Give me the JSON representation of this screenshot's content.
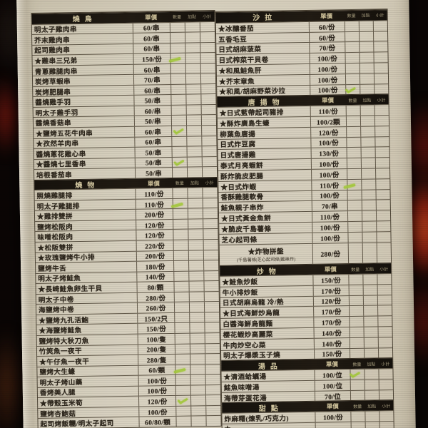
{
  "photo": {
    "background_color": "#0b0605",
    "paper_color": "#d3cbb8",
    "section_band_color": "#16120d",
    "text_color": "#2e271d",
    "highlighter_color": "#a5ca3c",
    "bokeh_red": "#8f2212"
  },
  "order_columns": {
    "price": "單價",
    "qty": "數量",
    "extra": "加點",
    "subtotal": "小計"
  },
  "icons": {
    "star": "★",
    "highlight_mark": "green-highlighter-stroke"
  },
  "menu": {
    "left": {
      "sections": [
        {
          "title": "燒鳥",
          "items": [
            {
              "name": "明太子雞肉串",
              "price": "60/串"
            },
            {
              "name": "芥末雞肉串",
              "price": "60/串"
            },
            {
              "name": "起司雞肉串",
              "price": "60/串"
            },
            {
              "name": "★雞串三兄弟",
              "price": "150/份",
              "mark": "line"
            },
            {
              "name": "青蔥雞腿肉串",
              "price": "60/串"
            },
            {
              "name": "炭烤草蝦串",
              "price": "70/串"
            },
            {
              "name": "炭烤肥腸串",
              "price": "60/串"
            },
            {
              "name": "醬燒雞手羽",
              "price": "50/串"
            },
            {
              "name": "明太子雞手羽",
              "price": "60/串"
            },
            {
              "name": "醬燒香菇串",
              "price": "50/串"
            },
            {
              "name": "★鹽烤五花牛肉串",
              "price": "60/串",
              "mark": "check"
            },
            {
              "name": "★孜然羊肉串",
              "price": "60/串"
            },
            {
              "name": "醬燒蔥花雞心串",
              "price": "50/串"
            },
            {
              "name": "★醬燒七里香串",
              "price": "50/串",
              "mark": "check"
            },
            {
              "name": "培根番茄串",
              "price": "50/串"
            }
          ]
        },
        {
          "title": "燒物",
          "items": [
            {
              "name": "照燒雞腿排",
              "price": "110/份"
            },
            {
              "name": "明太子雞腿排",
              "price": "110/份",
              "mark": "line"
            },
            {
              "name": "★雞排雙拼",
              "price": "200/份"
            },
            {
              "name": "鹽烤松阪肉",
              "price": "120/份"
            },
            {
              "name": "味噌松阪肉",
              "price": "120/份"
            },
            {
              "name": "★松阪雙拼",
              "price": "220/份"
            },
            {
              "name": "★玫瑰鹽烤牛小排",
              "price": "200/份"
            },
            {
              "name": "鹽烤牛舌",
              "price": "180/份"
            },
            {
              "name": "明太子烤鮭魚",
              "price": "140/份"
            },
            {
              "name": "★長崎鮭魚卵生干貝",
              "price": "80/顆"
            },
            {
              "name": "明太子中卷",
              "price": "280/份"
            },
            {
              "name": "海鹽烤中卷",
              "price": "260/份"
            },
            {
              "name": "★鹽烤九孔活鮑",
              "price": "150/2只"
            },
            {
              "name": "★海鹽烤鮭魚",
              "price": "150/份"
            },
            {
              "name": "鹽烤特大秋刀魚",
              "price": "100/隻"
            },
            {
              "name": "竹筴魚一夜干",
              "price": "200/隻"
            },
            {
              "name": "★午仔魚一夜干",
              "price": "280/隻"
            },
            {
              "name": "鹽烤大生蠔",
              "price": "60/顆",
              "mark": "line"
            },
            {
              "name": "明太子烤山藥",
              "price": "100/份"
            },
            {
              "name": "香烤美人腿",
              "price": "100/份"
            },
            {
              "name": "★帶殼玉米筍",
              "price": "120/份",
              "mark": "check"
            },
            {
              "name": "鹽烤杏鮑菇",
              "price": "100/份"
            },
            {
              "name": "起司烤飯糰/明太子起司",
              "price": "60/80/顆"
            }
          ]
        }
      ]
    },
    "right": {
      "sections": [
        {
          "title": "沙拉",
          "items": [
            {
              "name": "★冰釀番茄",
              "price": "60/份"
            },
            {
              "name": "五香毛豆",
              "price": "60/份"
            },
            {
              "name": "日式胡麻菠菜",
              "price": "70/份"
            },
            {
              "name": "日式榨菜干貝卷",
              "price": "100/份"
            },
            {
              "name": "★和風鮭魚肝",
              "price": "100/份"
            },
            {
              "name": "★芥末章魚",
              "price": "100/份"
            },
            {
              "name": "★和風/胡麻野菜沙拉",
              "price": "100/份",
              "mark": "check"
            }
          ]
        },
        {
          "title": "唐揚物",
          "items": [
            {
              "name": "★日式藍帶起司豬排",
              "price": "110/份"
            },
            {
              "name": "★酥炸廣島生蠔",
              "price": "100/2顆"
            },
            {
              "name": "柳葉魚唐揚",
              "price": "120/份"
            },
            {
              "name": "日式炸豆腐",
              "price": "100/份"
            },
            {
              "name": "日式唐揚雞",
              "price": "130/份"
            },
            {
              "name": "泰式月亮蝦餅",
              "price": "100/份"
            },
            {
              "name": "酥炸脆皮肥腸",
              "price": "100/份"
            },
            {
              "name": "★日式炸蝦",
              "price": "110/份",
              "mark": "line"
            },
            {
              "name": "香酥雞腿軟骨",
              "price": "100/份"
            },
            {
              "name": "鮭魚親子串炸",
              "price": "70/串"
            },
            {
              "name": "★日式黃金魚餅",
              "price": "110/份"
            },
            {
              "name": "★脆皮千島薯條",
              "price": "100/份"
            },
            {
              "name": "芝心起司條",
              "price": "100/份"
            },
            {
              "name": "★炸物拼盤",
              "note": "(千島薯條|芝心起司條|雞串炸)",
              "price": "280/份",
              "tall": true
            }
          ]
        },
        {
          "title": "炒物",
          "items": [
            {
              "name": "★鮭魚炒飯",
              "price": "150/份"
            },
            {
              "name": "牛小排炒飯",
              "price": "170/份"
            },
            {
              "name": "日式胡麻烏龍 冷/熱",
              "price": "120/份"
            },
            {
              "name": "★日式海鮮炒烏龍",
              "price": "170/份"
            },
            {
              "name": "白醬海鮮烏龍麵",
              "price": "170/份"
            },
            {
              "name": "櫻花蝦炒高麗菜",
              "price": "140/份"
            },
            {
              "name": "牛肉炒空心菜",
              "price": "140/份"
            },
            {
              "name": "明太子爆漿玉子燒",
              "price": "150/份"
            }
          ]
        },
        {
          "title": "湯品",
          "items": [
            {
              "name": "★清酒蛤蠣湯",
              "price": "100/位",
              "mark": "check"
            },
            {
              "name": "鮭魚味噌湯",
              "price": "100/位"
            },
            {
              "name": "海帶芽蛋花湯",
              "price": "70/位"
            }
          ]
        },
        {
          "title": "甜點",
          "items": [
            {
              "name": "炸麻糬(煉乳/巧克力)",
              "price": "100/份"
            },
            {
              "name": "★",
              "price": "",
              "partial": true
            }
          ]
        }
      ]
    }
  }
}
